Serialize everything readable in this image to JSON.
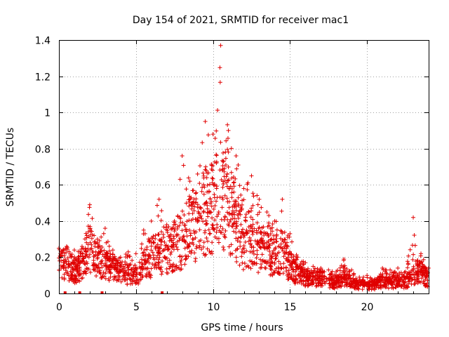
{
  "chart_data": {
    "type": "scatter",
    "title": "Day 154 of 2021, SRMTID for receiver mac1",
    "xlabel": "GPS time / hours",
    "ylabel": "SRMTID / TECUs",
    "xlim": [
      0,
      24
    ],
    "ylim": [
      0,
      1.4
    ],
    "x_ticks": [
      0,
      5,
      10,
      15,
      20
    ],
    "x_tick_labels": [
      "0",
      "5",
      "10",
      "15",
      "20"
    ],
    "y_ticks": [
      0,
      0.2,
      0.4,
      0.6,
      0.8,
      1.0,
      1.2,
      1.4
    ],
    "y_tick_labels": [
      "0",
      "0.2",
      "0.4",
      "0.6",
      "0.8",
      "1",
      "1.2",
      "1.4"
    ],
    "grid": true,
    "marker": "+",
    "series_color": "#e00000",
    "series": [
      {
        "name": "SRMTID",
        "envelope_hours": [
          0,
          0.5,
          1,
          1.5,
          2,
          2.5,
          3,
          3.5,
          4,
          4.5,
          5,
          5.5,
          6,
          6.5,
          7,
          7.5,
          8,
          8.5,
          9,
          9.5,
          10,
          10.5,
          11,
          11.5,
          12,
          12.5,
          13,
          13.5,
          14,
          14.5,
          15,
          15.5,
          16,
          16.5,
          17,
          17.5,
          18,
          18.5,
          19,
          19.5,
          20,
          20.5,
          21,
          21.5,
          22,
          22.5,
          23,
          23.5,
          24
        ],
        "envelope_median": [
          0.15,
          0.17,
          0.12,
          0.15,
          0.25,
          0.2,
          0.15,
          0.14,
          0.12,
          0.11,
          0.1,
          0.15,
          0.2,
          0.22,
          0.24,
          0.26,
          0.3,
          0.35,
          0.4,
          0.45,
          0.48,
          0.55,
          0.5,
          0.38,
          0.28,
          0.3,
          0.25,
          0.23,
          0.22,
          0.23,
          0.15,
          0.1,
          0.09,
          0.08,
          0.08,
          0.07,
          0.06,
          0.08,
          0.06,
          0.05,
          0.04,
          0.05,
          0.07,
          0.06,
          0.07,
          0.06,
          0.1,
          0.12,
          0.07
        ],
        "envelope_max": [
          0.25,
          0.26,
          0.24,
          0.26,
          0.49,
          0.3,
          0.36,
          0.24,
          0.2,
          0.23,
          0.22,
          0.35,
          0.4,
          0.52,
          0.38,
          0.4,
          0.76,
          0.62,
          0.66,
          0.95,
          0.88,
          1.37,
          0.9,
          0.76,
          0.58,
          0.65,
          0.52,
          0.45,
          0.4,
          0.52,
          0.33,
          0.2,
          0.17,
          0.15,
          0.14,
          0.13,
          0.12,
          0.19,
          0.13,
          0.09,
          0.1,
          0.08,
          0.14,
          0.13,
          0.14,
          0.12,
          0.42,
          0.22,
          0.14
        ],
        "zero_markers_hours": [
          0.4,
          1.35,
          2.8,
          6.7
        ]
      }
    ]
  }
}
